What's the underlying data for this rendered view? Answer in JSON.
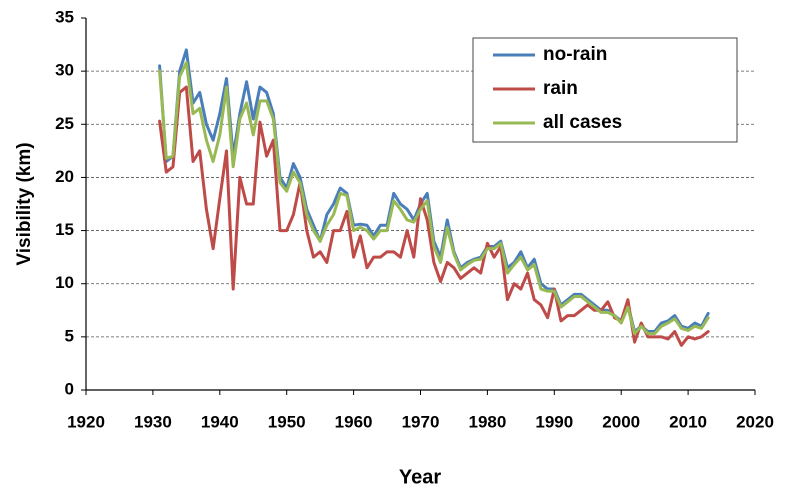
{
  "chart_data": {
    "type": "line",
    "x": [
      1931,
      1932,
      1933,
      1934,
      1935,
      1936,
      1937,
      1938,
      1939,
      1940,
      1941,
      1942,
      1943,
      1944,
      1945,
      1946,
      1947,
      1948,
      1949,
      1950,
      1951,
      1952,
      1953,
      1954,
      1955,
      1956,
      1957,
      1958,
      1959,
      1960,
      1961,
      1962,
      1963,
      1964,
      1965,
      1966,
      1967,
      1968,
      1969,
      1970,
      1971,
      1972,
      1973,
      1974,
      1975,
      1976,
      1977,
      1978,
      1979,
      1980,
      1981,
      1982,
      1983,
      1984,
      1985,
      1986,
      1987,
      1988,
      1989,
      1990,
      1991,
      1992,
      1993,
      1994,
      1995,
      1996,
      1997,
      1998,
      1999,
      2000,
      2001,
      2002,
      2003,
      2004,
      2005,
      2006,
      2007,
      2008,
      2009,
      2010,
      2011,
      2012,
      2013
    ],
    "series": [
      {
        "name": "no-rain",
        "color": "#4a7ebb",
        "values": [
          30.5,
          21.5,
          22,
          30,
          32,
          27,
          28,
          25,
          23.5,
          26,
          29.3,
          22,
          26,
          29,
          25.5,
          28.5,
          28,
          26,
          20,
          19,
          21.3,
          20,
          17,
          15.5,
          14,
          16.5,
          17.5,
          19,
          18.5,
          15.5,
          15.6,
          15.5,
          14.5,
          15.5,
          15.5,
          18.5,
          17.5,
          17,
          16,
          17.5,
          18.5,
          14,
          12.5,
          16,
          13,
          11.5,
          12,
          12.3,
          12.5,
          13.5,
          13.5,
          14,
          11.5,
          12,
          13,
          11.5,
          12.3,
          10,
          9.5,
          9.5,
          8,
          8.5,
          9,
          9,
          8.5,
          8,
          7.5,
          7.5,
          7,
          6.5,
          8,
          5.5,
          6,
          5.5,
          5.5,
          6.3,
          6.5,
          7,
          6,
          5.8,
          6.3,
          6,
          7.2
        ]
      },
      {
        "name": "rain",
        "color": "#be4b48",
        "values": [
          25.3,
          20.5,
          21,
          28,
          28.5,
          21.5,
          22.5,
          17,
          13.3,
          18,
          22.5,
          9.5,
          20,
          17.5,
          17.5,
          25.2,
          22,
          23.5,
          15,
          15,
          16.5,
          19.5,
          15,
          12.5,
          13,
          12,
          15,
          15,
          16.8,
          12.5,
          14.5,
          11.5,
          12.5,
          12.5,
          13,
          13,
          12.5,
          15,
          12.5,
          18,
          16,
          12,
          10.2,
          12,
          11.5,
          10.5,
          11,
          11.5,
          11,
          13.8,
          12.5,
          13.5,
          8.5,
          10,
          9.5,
          11,
          8.5,
          8,
          6.8,
          9.5,
          6.5,
          7,
          7,
          7.5,
          8,
          7.5,
          7.5,
          8.3,
          6.8,
          6.5,
          8.5,
          4.5,
          6.3,
          5,
          5,
          5,
          4.8,
          5.5,
          4.2,
          5,
          4.8,
          5,
          5.5
        ]
      },
      {
        "name": "all cases",
        "color": "#98b954",
        "values": [
          30,
          21.8,
          22,
          29.5,
          30.8,
          26,
          26.5,
          23.5,
          21.5,
          24,
          28.5,
          21,
          25.5,
          27,
          24,
          27.2,
          27.2,
          25.5,
          19.5,
          18.7,
          20.5,
          19.5,
          16.5,
          15,
          14,
          15.5,
          16.5,
          18.5,
          18.3,
          15,
          15.3,
          15,
          14.2,
          15,
          15,
          17.8,
          17,
          16,
          15.8,
          17,
          17.8,
          13.5,
          12,
          15.3,
          12.8,
          11.3,
          11.8,
          12.2,
          12.3,
          13.3,
          13.3,
          13.8,
          11,
          11.8,
          12.5,
          11.3,
          11.8,
          9.5,
          9.3,
          9.3,
          7.8,
          8.3,
          8.8,
          8.8,
          8.3,
          7.8,
          7.3,
          7.3,
          7,
          6.3,
          7.8,
          5.3,
          6,
          5.3,
          5.3,
          6,
          6.3,
          6.7,
          5.8,
          5.6,
          6,
          5.8,
          6.8
        ]
      }
    ],
    "xlabel": "Year",
    "ylabel": "Visibility (km)",
    "xlim": [
      1920,
      2020
    ],
    "xticks": [
      1920,
      1930,
      1940,
      1950,
      1960,
      1970,
      1980,
      1990,
      2000,
      2010,
      2020
    ],
    "ylim": [
      0,
      35
    ],
    "yticks": [
      0,
      5,
      10,
      15,
      20,
      25,
      30,
      35
    ],
    "grid": true,
    "legend": "upper right"
  }
}
